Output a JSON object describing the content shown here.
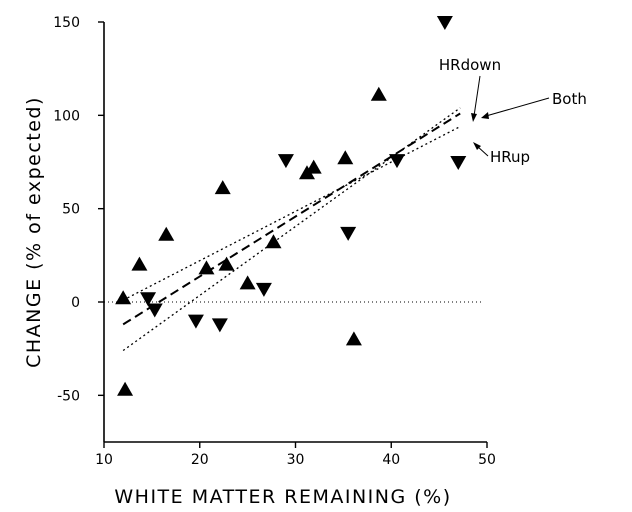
{
  "chart_data": {
    "type": "scatter",
    "xlabel": "WHITE MATTER REMAINING (%)",
    "ylabel": "CHANGE (% of expected)",
    "xlim": [
      10,
      50
    ],
    "ylim": [
      -75,
      150
    ],
    "xticks": [
      10,
      20,
      30,
      40,
      50
    ],
    "yticks": [
      -50,
      0,
      50,
      100,
      150
    ],
    "grid": false,
    "reference_line_y": 0,
    "series": [
      {
        "marker": "triangle-up",
        "points": [
          {
            "x": 12.0,
            "y": 2
          },
          {
            "x": 12.2,
            "y": -47
          },
          {
            "x": 13.7,
            "y": 20
          },
          {
            "x": 16.5,
            "y": 36
          },
          {
            "x": 20.7,
            "y": 18
          },
          {
            "x": 22.4,
            "y": 61
          },
          {
            "x": 22.8,
            "y": 20
          },
          {
            "x": 25.0,
            "y": 10
          },
          {
            "x": 27.7,
            "y": 32
          },
          {
            "x": 31.2,
            "y": 69
          },
          {
            "x": 31.9,
            "y": 72
          },
          {
            "x": 35.2,
            "y": 77
          },
          {
            "x": 36.1,
            "y": -20
          },
          {
            "x": 38.7,
            "y": 111
          }
        ]
      },
      {
        "marker": "triangle-down",
        "points": [
          {
            "x": 14.6,
            "y": 2
          },
          {
            "x": 15.3,
            "y": -4
          },
          {
            "x": 19.6,
            "y": -10
          },
          {
            "x": 22.1,
            "y": -12
          },
          {
            "x": 26.7,
            "y": 7
          },
          {
            "x": 29.0,
            "y": 76
          },
          {
            "x": 35.5,
            "y": 37
          },
          {
            "x": 40.6,
            "y": 76
          },
          {
            "x": 45.6,
            "y": 150
          },
          {
            "x": 47.0,
            "y": 75
          }
        ]
      }
    ],
    "fit_lines": [
      {
        "name": "HRdown",
        "style": "dotted",
        "x": [
          12,
          47.2
        ],
        "y": [
          -26,
          104
        ]
      },
      {
        "name": "Both",
        "style": "dashed",
        "x": [
          12,
          47.2
        ],
        "y": [
          -12,
          101
        ]
      },
      {
        "name": "HRup",
        "style": "dotted",
        "x": [
          12,
          47.2
        ],
        "y": [
          1,
          94
        ]
      }
    ],
    "annotations": [
      "HRdown",
      "Both",
      "HRup"
    ]
  }
}
